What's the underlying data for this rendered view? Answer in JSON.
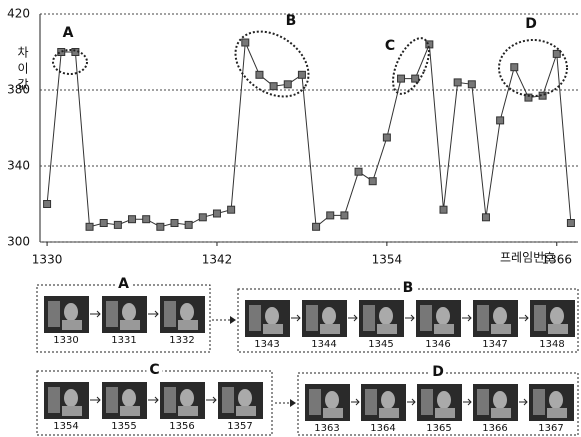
{
  "chart_data": {
    "type": "line",
    "y_label": "차이값",
    "x_label": "프레임번호",
    "x": [
      1330,
      1331,
      1332,
      1333,
      1334,
      1335,
      1336,
      1337,
      1338,
      1339,
      1340,
      1341,
      1342,
      1343,
      1344,
      1345,
      1346,
      1347,
      1348,
      1349,
      1350,
      1351,
      1352,
      1353,
      1354,
      1355,
      1356,
      1357,
      1358,
      1359,
      1360,
      1361,
      1362,
      1363,
      1364,
      1365,
      1366,
      1367
    ],
    "values": [
      320,
      400,
      400,
      308,
      310,
      309,
      312,
      312,
      308,
      310,
      309,
      313,
      315,
      317,
      405,
      388,
      382,
      383,
      388,
      308,
      314,
      314,
      337,
      332,
      355,
      386,
      386,
      404,
      317,
      384,
      383,
      313,
      364,
      392,
      376,
      377,
      399,
      310
    ],
    "color": "#333333",
    "xlim": [
      1329.5,
      1367.5
    ],
    "xticks": [
      1330,
      1342,
      1354,
      1366
    ],
    "ylim": [
      300,
      420
    ],
    "yticks": [
      300,
      340,
      380,
      420
    ],
    "grid": true,
    "annotations": [
      "A",
      "B",
      "C",
      "D"
    ]
  },
  "panels": [
    {
      "label": "A",
      "frames": [
        "1330",
        "1331",
        "1332"
      ]
    },
    {
      "label": "B",
      "frames": [
        "1343",
        "1344",
        "1345",
        "1346",
        "1347",
        "1348"
      ]
    },
    {
      "label": "C",
      "frames": [
        "1354",
        "1355",
        "1356",
        "1357"
      ]
    },
    {
      "label": "D",
      "frames": [
        "1363",
        "1364",
        "1365",
        "1366",
        "1367"
      ]
    }
  ]
}
